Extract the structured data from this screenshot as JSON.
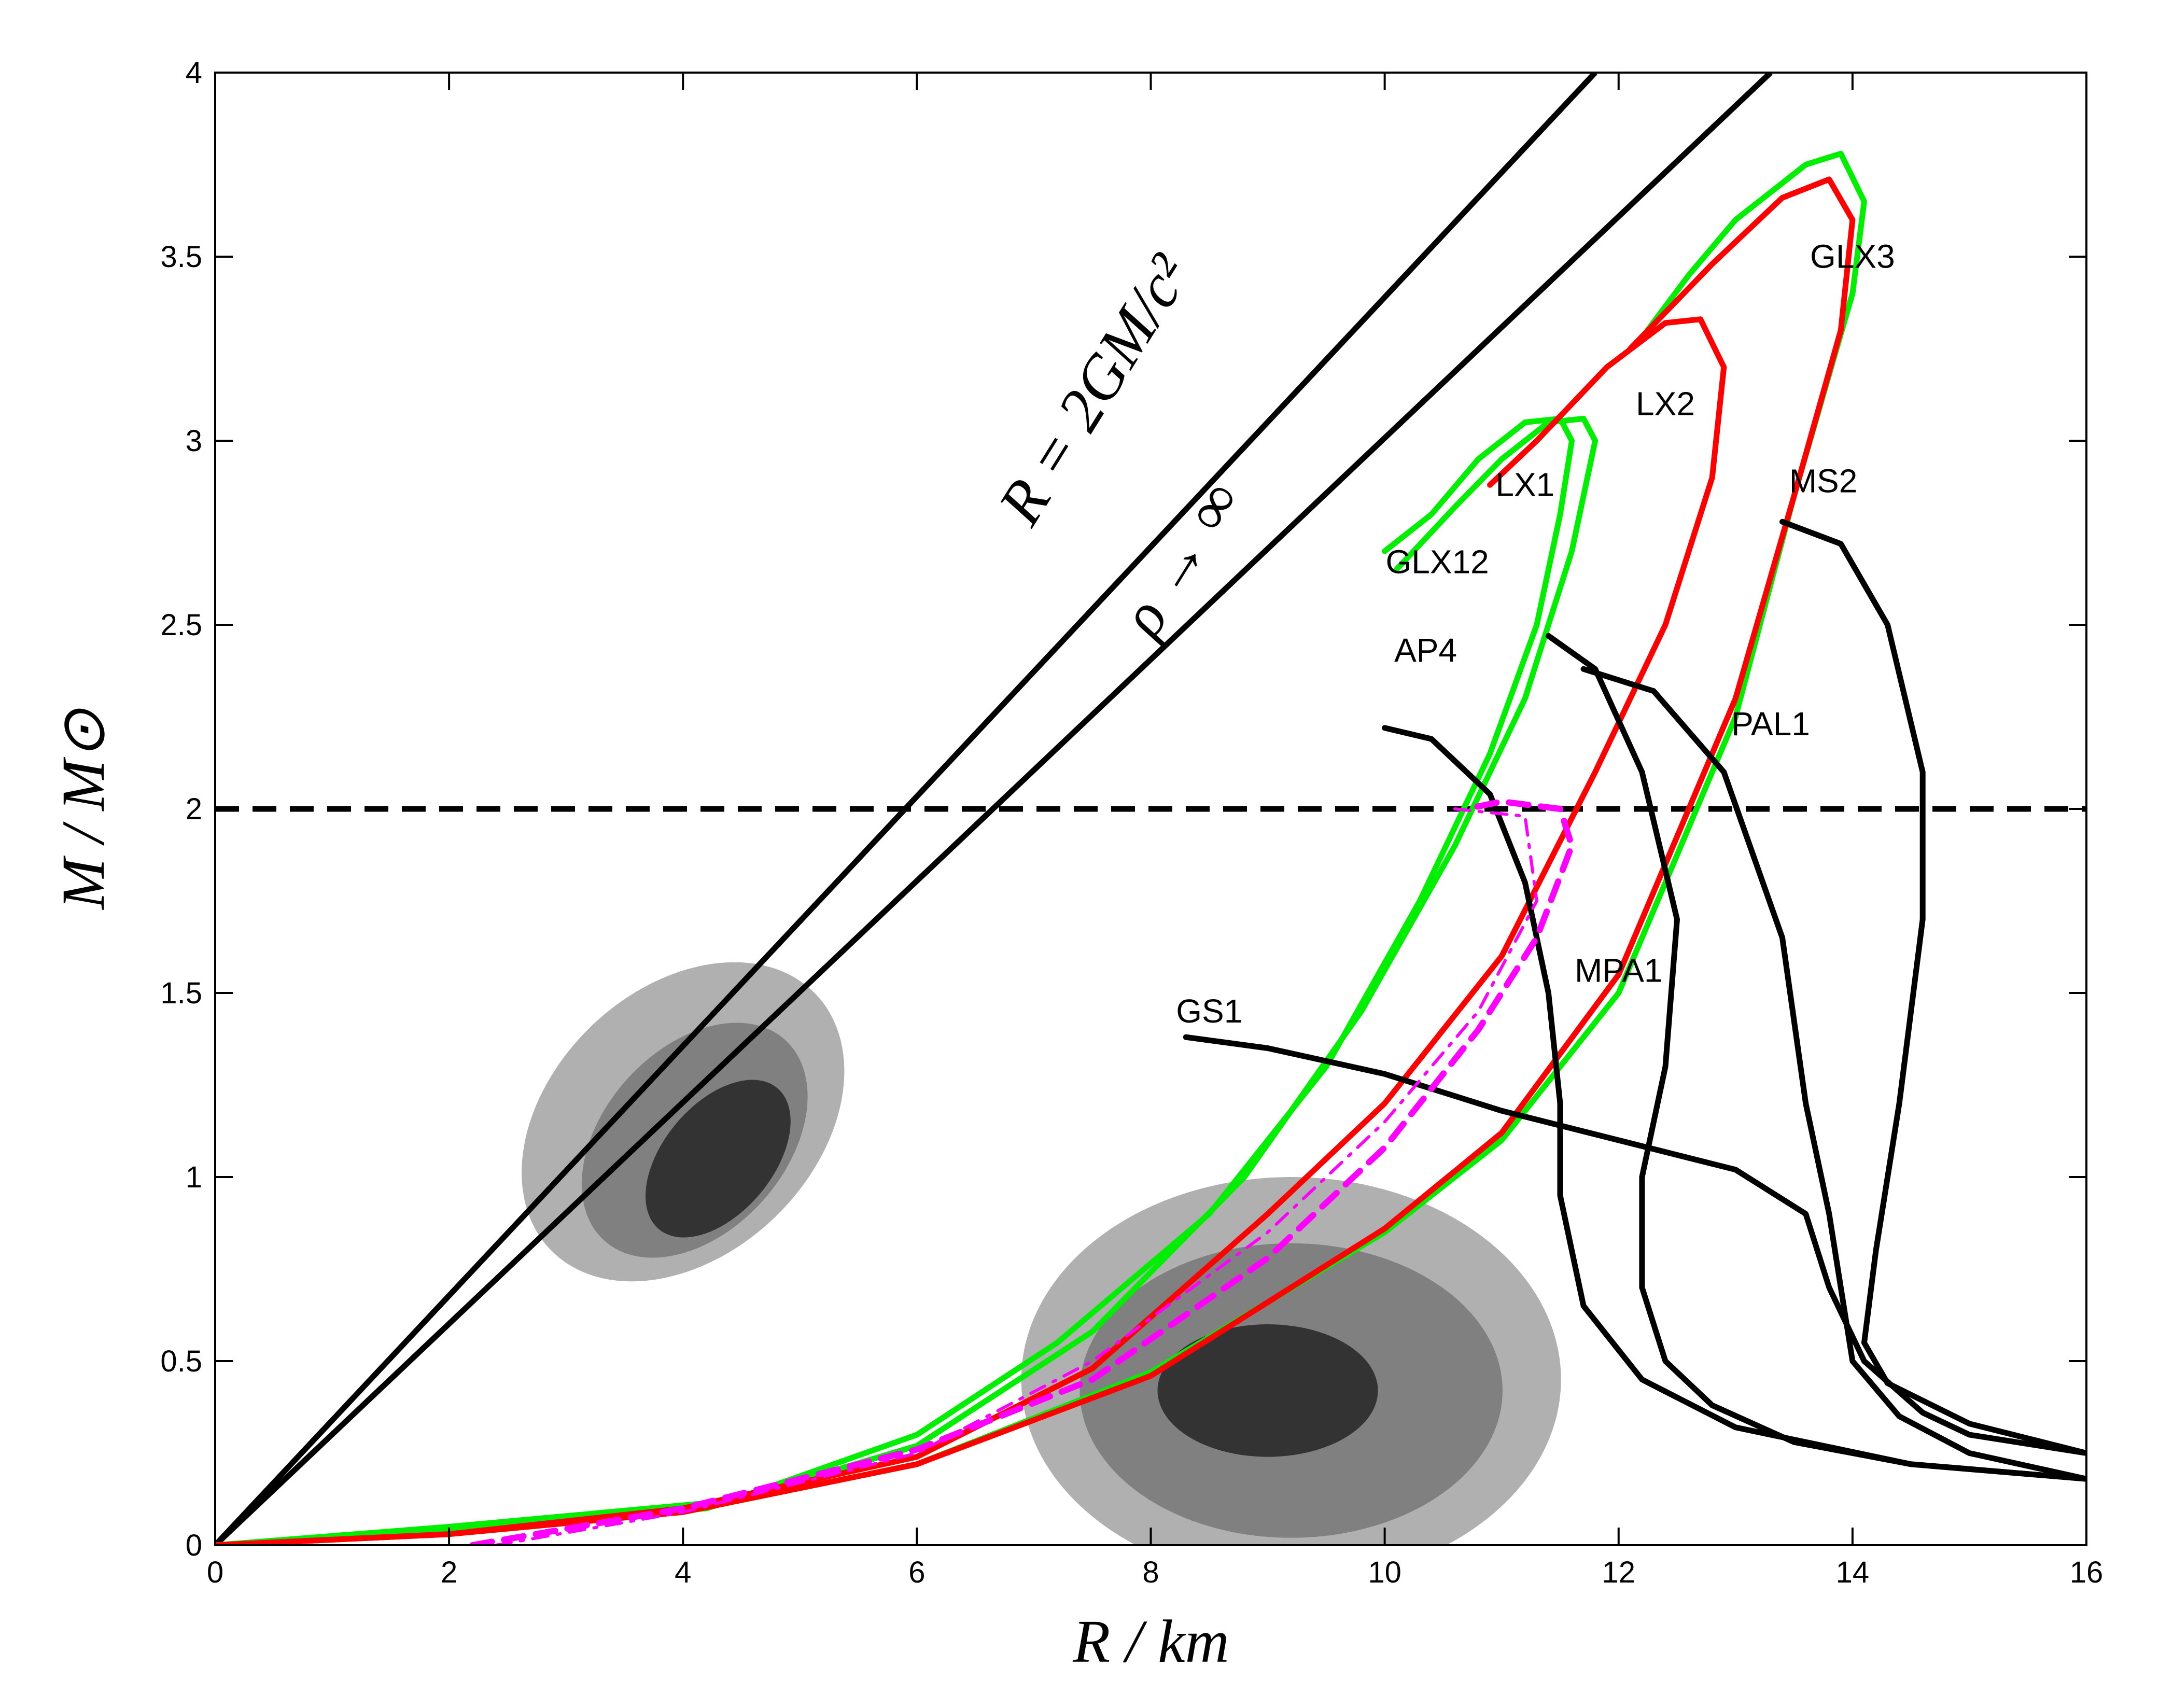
{
  "chart_data": {
    "type": "line",
    "title": "",
    "xlabel": "R / km",
    "ylabel": "M / M⊙",
    "xlim": [
      0,
      16
    ],
    "ylim": [
      0,
      4
    ],
    "xticks": [
      0,
      2,
      4,
      6,
      8,
      10,
      12,
      14,
      16
    ],
    "yticks": [
      0,
      0.5,
      1,
      1.5,
      2,
      2.5,
      3,
      3.5,
      4
    ],
    "xtick_labels": [
      "0",
      "2",
      "4",
      "6",
      "8",
      "10",
      "12",
      "14",
      "16"
    ],
    "ytick_labels": [
      "0",
      "0.5",
      "1",
      "1.5",
      "2",
      "2.5",
      "3",
      "3.5",
      "4"
    ],
    "colors": {
      "black": "#000000",
      "green": "#00ee00",
      "red": "#ff0000",
      "magenta": "#ff00ff",
      "light_gray": "#b0b0b0",
      "mid_gray": "#808080",
      "dark_gray": "#333333"
    },
    "reference_lines": [
      {
        "name": "schwarzschild",
        "label": "R = 2GM/c²",
        "points": [
          [
            0,
            0
          ],
          [
            11.8,
            4
          ]
        ]
      },
      {
        "name": "rho-infinity",
        "label": "ρ → ∞",
        "points": [
          [
            0,
            0
          ],
          [
            13.3,
            4
          ]
        ]
      },
      {
        "name": "two-solar-mass",
        "label": "",
        "style": "dashed",
        "y": 2.0
      }
    ],
    "series": [
      {
        "name": "GLX3",
        "label": "GLX3",
        "color": "green",
        "label_pos": [
          14.0,
          3.47
        ],
        "points": [
          [
            0,
            0
          ],
          [
            2,
            0.03
          ],
          [
            4,
            0.09
          ],
          [
            6,
            0.22
          ],
          [
            8,
            0.47
          ],
          [
            10,
            0.85
          ],
          [
            11,
            1.1
          ],
          [
            12,
            1.5
          ],
          [
            13,
            2.25
          ],
          [
            13.5,
            2.85
          ],
          [
            14.0,
            3.4
          ],
          [
            14.1,
            3.65
          ],
          [
            13.9,
            3.78
          ],
          [
            13.6,
            3.75
          ],
          [
            13.0,
            3.6
          ],
          [
            12.6,
            3.45
          ],
          [
            12.2,
            3.28
          ]
        ]
      },
      {
        "name": "GLX12",
        "label": "GLX12",
        "color": "green",
        "label_pos": [
          10.45,
          2.64
        ],
        "points": [
          [
            0,
            0
          ],
          [
            2,
            0.05
          ],
          [
            4.4,
            0.12
          ],
          [
            6,
            0.3
          ],
          [
            7.2,
            0.55
          ],
          [
            8.5,
            0.9
          ],
          [
            9.5,
            1.3
          ],
          [
            10.3,
            1.75
          ],
          [
            10.9,
            2.15
          ],
          [
            11.3,
            2.5
          ],
          [
            11.5,
            2.8
          ],
          [
            11.6,
            3.0
          ],
          [
            11.5,
            3.06
          ],
          [
            11.2,
            3.05
          ],
          [
            10.8,
            2.95
          ],
          [
            10.4,
            2.8
          ],
          [
            10.0,
            2.7
          ]
        ]
      },
      {
        "name": "GLX12-b",
        "label": "",
        "color": "green",
        "points": [
          [
            0,
            0
          ],
          [
            2,
            0.04
          ],
          [
            4.2,
            0.1
          ],
          [
            6,
            0.27
          ],
          [
            7.5,
            0.58
          ],
          [
            8.8,
            1.0
          ],
          [
            9.8,
            1.45
          ],
          [
            10.6,
            1.9
          ],
          [
            11.2,
            2.3
          ],
          [
            11.6,
            2.7
          ],
          [
            11.8,
            3.0
          ],
          [
            11.7,
            3.06
          ],
          [
            11.4,
            3.05
          ],
          [
            11.0,
            2.95
          ],
          [
            10.6,
            2.82
          ],
          [
            10.1,
            2.65
          ]
        ]
      },
      {
        "name": "LX1",
        "label": "LX1",
        "color": "red",
        "label_pos": [
          11.2,
          2.85
        ],
        "points": [
          [
            0,
            0
          ],
          [
            2,
            0.03
          ],
          [
            4,
            0.1
          ],
          [
            6,
            0.24
          ],
          [
            7.5,
            0.48
          ],
          [
            9,
            0.9
          ],
          [
            10,
            1.2
          ],
          [
            11,
            1.6
          ],
          [
            11.8,
            2.1
          ],
          [
            12.4,
            2.5
          ],
          [
            12.8,
            2.9
          ],
          [
            12.9,
            3.2
          ],
          [
            12.7,
            3.33
          ],
          [
            12.4,
            3.32
          ],
          [
            11.9,
            3.2
          ],
          [
            11.3,
            3.0
          ],
          [
            10.9,
            2.88
          ]
        ]
      },
      {
        "name": "LX2",
        "label": "LX2",
        "color": "red",
        "label_pos": [
          12.4,
          3.07
        ],
        "points": [
          [
            0,
            0
          ],
          [
            2,
            0.03
          ],
          [
            4,
            0.09
          ],
          [
            6,
            0.22
          ],
          [
            8,
            0.46
          ],
          [
            10,
            0.86
          ],
          [
            11,
            1.12
          ],
          [
            12,
            1.55
          ],
          [
            13,
            2.3
          ],
          [
            13.5,
            2.85
          ],
          [
            13.9,
            3.3
          ],
          [
            14.0,
            3.6
          ],
          [
            13.8,
            3.71
          ],
          [
            13.4,
            3.66
          ],
          [
            12.8,
            3.48
          ],
          [
            12.1,
            3.25
          ]
        ]
      },
      {
        "name": "MS2",
        "label": "MS2",
        "color": "black",
        "label_pos": [
          13.75,
          2.86
        ],
        "points": [
          [
            13.4,
            2.78
          ],
          [
            13.9,
            2.72
          ],
          [
            14.3,
            2.5
          ],
          [
            14.6,
            2.1
          ],
          [
            14.6,
            1.7
          ],
          [
            14.4,
            1.2
          ],
          [
            14.2,
            0.8
          ],
          [
            14.1,
            0.55
          ],
          [
            14.3,
            0.44
          ],
          [
            15,
            0.33
          ],
          [
            16,
            0.25
          ]
        ]
      },
      {
        "name": "PAL1",
        "label": "PAL1",
        "color": "black",
        "label_pos": [
          13.3,
          2.2
        ],
        "points": [
          [
            11.7,
            2.38
          ],
          [
            12.3,
            2.32
          ],
          [
            12.9,
            2.1
          ],
          [
            13.4,
            1.65
          ],
          [
            13.6,
            1.2
          ],
          [
            13.8,
            0.9
          ],
          [
            13.9,
            0.7
          ],
          [
            14.0,
            0.5
          ],
          [
            14.4,
            0.35
          ],
          [
            15,
            0.25
          ],
          [
            16,
            0.18
          ]
        ]
      },
      {
        "name": "MPA1",
        "label": "MPA1",
        "color": "black",
        "label_pos": [
          12.0,
          1.53
        ],
        "points": [
          [
            11.4,
            2.47
          ],
          [
            11.8,
            2.38
          ],
          [
            12.2,
            2.1
          ],
          [
            12.5,
            1.7
          ],
          [
            12.4,
            1.3
          ],
          [
            12.2,
            1.0
          ],
          [
            12.2,
            0.7
          ],
          [
            12.4,
            0.5
          ],
          [
            12.8,
            0.38
          ],
          [
            13.5,
            0.28
          ],
          [
            14.5,
            0.22
          ],
          [
            16,
            0.18
          ]
        ]
      },
      {
        "name": "AP4",
        "label": "AP4",
        "color": "black",
        "label_pos": [
          10.35,
          2.4
        ],
        "points": [
          [
            10.0,
            2.22
          ],
          [
            10.4,
            2.19
          ],
          [
            10.9,
            2.04
          ],
          [
            11.2,
            1.8
          ],
          [
            11.4,
            1.5
          ],
          [
            11.5,
            1.2
          ],
          [
            11.5,
            0.95
          ],
          [
            11.7,
            0.65
          ],
          [
            12.2,
            0.45
          ],
          [
            13,
            0.32
          ],
          [
            14.5,
            0.22
          ],
          [
            16,
            0.18
          ]
        ]
      },
      {
        "name": "GS1",
        "label": "GS1",
        "color": "black",
        "label_pos": [
          8.5,
          1.42
        ],
        "points": [
          [
            8.3,
            1.38
          ],
          [
            9,
            1.35
          ],
          [
            10,
            1.28
          ],
          [
            11,
            1.18
          ],
          [
            12,
            1.1
          ],
          [
            13,
            1.02
          ],
          [
            13.6,
            0.9
          ],
          [
            13.8,
            0.7
          ],
          [
            14.1,
            0.5
          ],
          [
            14.6,
            0.36
          ],
          [
            15,
            0.3
          ],
          [
            16,
            0.25
          ]
        ]
      },
      {
        "name": "magenta-dashed",
        "label": "",
        "color": "magenta",
        "style": "dashed",
        "points": [
          [
            2.2,
            0
          ],
          [
            4,
            0.1
          ],
          [
            6,
            0.26
          ],
          [
            7.5,
            0.45
          ],
          [
            9,
            0.78
          ],
          [
            10,
            1.08
          ],
          [
            10.8,
            1.4
          ],
          [
            11.3,
            1.65
          ],
          [
            11.6,
            1.9
          ],
          [
            11.5,
            2.0
          ],
          [
            11.0,
            2.02
          ],
          [
            10.7,
            2.0
          ]
        ]
      },
      {
        "name": "magenta-dashdot",
        "label": "",
        "color": "magenta",
        "style": "dashdot",
        "points": [
          [
            2.4,
            0
          ],
          [
            4,
            0.09
          ],
          [
            6,
            0.25
          ],
          [
            7.5,
            0.5
          ],
          [
            9,
            0.85
          ],
          [
            10,
            1.15
          ],
          [
            10.8,
            1.45
          ],
          [
            11.3,
            1.75
          ],
          [
            11.2,
            1.98
          ],
          [
            10.6,
            2.0
          ]
        ]
      }
    ],
    "contours": [
      {
        "name": "left-outer",
        "level": "light",
        "cx": 4.0,
        "cy": 1.15,
        "rx": 1.5,
        "ry": 0.8,
        "rot": -44
      },
      {
        "name": "left-mid",
        "level": "mid",
        "cx": 4.1,
        "cy": 1.1,
        "rx": 1.1,
        "ry": 0.55,
        "rot": -48
      },
      {
        "name": "left-core",
        "level": "dark",
        "cx": 4.3,
        "cy": 1.05,
        "rx": 0.75,
        "ry": 0.33,
        "rot": -50
      },
      {
        "name": "right-outer",
        "level": "light",
        "cx": 9.2,
        "cy": 0.45,
        "rx": 6.0,
        "ry": 0.55,
        "rot": 0
      },
      {
        "name": "right-mid",
        "level": "mid",
        "cx": 9.2,
        "cy": 0.42,
        "rx": 4.7,
        "ry": 0.4,
        "rot": 0
      },
      {
        "name": "right-core",
        "level": "dark",
        "cx": 9.0,
        "cy": 0.42,
        "rx": 2.45,
        "ry": 0.18,
        "rot": 0
      }
    ]
  }
}
